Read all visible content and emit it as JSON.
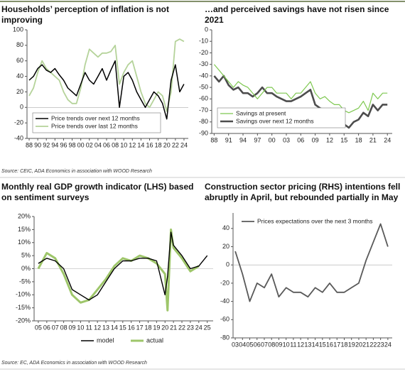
{
  "chart_data": [
    {
      "type": "line",
      "title": "Households’ perception of inflation is not improving",
      "legend": "lower left",
      "x": [
        1988,
        1989,
        1990,
        1991,
        1992,
        1993,
        1994,
        1995,
        1996,
        1997,
        1998,
        1999,
        2000,
        2001,
        2002,
        2003,
        2004,
        2005,
        2006,
        2007,
        2008,
        2009,
        2010,
        2011,
        2012,
        2013,
        2014,
        2015,
        2016,
        2017,
        2018,
        2019,
        2020,
        2021,
        2022,
        2023,
        2024
      ],
      "series": [
        {
          "name": "Price trends over next 12 months",
          "color": "#000000",
          "values": [
            35,
            40,
            50,
            55,
            48,
            45,
            50,
            42,
            35,
            25,
            20,
            15,
            30,
            45,
            35,
            30,
            40,
            50,
            35,
            48,
            60,
            0,
            40,
            45,
            35,
            20,
            10,
            0,
            10,
            20,
            15,
            5,
            -15,
            35,
            55,
            20,
            30
          ]
        },
        {
          "name": "Price trends over last 12 months",
          "color": "#b5d39a",
          "values": [
            15,
            25,
            45,
            60,
            50,
            45,
            40,
            35,
            20,
            10,
            5,
            5,
            25,
            55,
            75,
            70,
            65,
            70,
            70,
            72,
            80,
            30,
            45,
            55,
            60,
            40,
            20,
            5,
            0,
            10,
            20,
            15,
            -5,
            20,
            85,
            88,
            85
          ]
        }
      ],
      "xlim": [
        1987.5,
        2025
      ],
      "ylim": [
        -40,
        100
      ],
      "yticks": [
        -40,
        -20,
        0,
        20,
        40,
        60,
        80,
        100
      ],
      "xticks": [
        {
          "value": 1988,
          "label": "88"
        },
        {
          "value": 1990,
          "label": "90"
        },
        {
          "value": 1992,
          "label": "92"
        },
        {
          "value": 1994,
          "label": "94"
        },
        {
          "value": 1996,
          "label": "96"
        },
        {
          "value": 1998,
          "label": "98"
        },
        {
          "value": 2000,
          "label": "00"
        },
        {
          "value": 2002,
          "label": "02"
        },
        {
          "value": 2004,
          "label": "04"
        },
        {
          "value": 2006,
          "label": "06"
        },
        {
          "value": 2008,
          "label": "08"
        },
        {
          "value": 2010,
          "label": "10"
        },
        {
          "value": 2012,
          "label": "12"
        },
        {
          "value": 2014,
          "label": "14"
        },
        {
          "value": 2016,
          "label": "16"
        },
        {
          "value": 2018,
          "label": "18"
        },
        {
          "value": 2020,
          "label": "20"
        },
        {
          "value": 2022,
          "label": "22"
        },
        {
          "value": 2024,
          "label": "24"
        }
      ]
    },
    {
      "type": "line",
      "title": "…and perceived savings have not risen since 2021",
      "legend": "lower left",
      "x": [
        1988,
        1989,
        1990,
        1991,
        1992,
        1993,
        1994,
        1995,
        1996,
        1997,
        1998,
        1999,
        2000,
        2001,
        2002,
        2003,
        2004,
        2005,
        2006,
        2007,
        2008,
        2009,
        2010,
        2011,
        2012,
        2013,
        2014,
        2015,
        2016,
        2017,
        2018,
        2019,
        2020,
        2021,
        2022,
        2023,
        2024
      ],
      "series": [
        {
          "name": "Savings at present",
          "color": "#7ec850",
          "values": [
            -30,
            -35,
            -40,
            -45,
            -50,
            -45,
            -48,
            -50,
            -55,
            -60,
            -55,
            -50,
            -50,
            -55,
            -55,
            -55,
            -60,
            -55,
            -55,
            -50,
            -45,
            -55,
            -60,
            -58,
            -62,
            -65,
            -65,
            -70,
            -72,
            -70,
            -68,
            -62,
            -70,
            -55,
            -60,
            -55,
            -55
          ]
        },
        {
          "name": "Savings over next 12 months",
          "color": "#4d4d4d",
          "values": [
            -40,
            -45,
            -40,
            -48,
            -52,
            -50,
            -55,
            -55,
            -58,
            -55,
            -50,
            -55,
            -55,
            -58,
            -60,
            -62,
            -62,
            -60,
            -58,
            -55,
            -52,
            -65,
            -68,
            -70,
            -75,
            -72,
            -78,
            -82,
            -85,
            -80,
            -78,
            -72,
            -75,
            -65,
            -70,
            -65,
            -65
          ]
        }
      ],
      "xlim": [
        1987.5,
        2025
      ],
      "ylim": [
        -90,
        0
      ],
      "yticks": [
        -90,
        -80,
        -70,
        -60,
        -50,
        -40,
        -30,
        -20,
        -10,
        0
      ],
      "xticks": [
        {
          "value": 1988,
          "label": "88"
        },
        {
          "value": 1991,
          "label": "91"
        },
        {
          "value": 1994,
          "label": "94"
        },
        {
          "value": 1997,
          "label": "97"
        },
        {
          "value": 2000,
          "label": "00"
        },
        {
          "value": 2003,
          "label": "03"
        },
        {
          "value": 2006,
          "label": "06"
        },
        {
          "value": 2009,
          "label": "09"
        },
        {
          "value": 2012,
          "label": "12"
        },
        {
          "value": 2015,
          "label": "15"
        },
        {
          "value": 2018,
          "label": "18"
        },
        {
          "value": 2021,
          "label": "21"
        },
        {
          "value": 2024,
          "label": "24"
        }
      ]
    },
    {
      "type": "line",
      "title": "Monthly real GDP growth indicator (LHS) based on sentiment surveys",
      "legend": "bottom",
      "x": [
        2005,
        2006,
        2007,
        2008,
        2009,
        2010,
        2011,
        2012,
        2013,
        2014,
        2015,
        2016,
        2017,
        2018,
        2019,
        2020,
        2020.3,
        2020.7,
        2021,
        2022,
        2023,
        2024,
        2025
      ],
      "series": [
        {
          "name": "model",
          "color": "#000000",
          "values": [
            2,
            4,
            3,
            0,
            -8,
            -10,
            -12,
            -10,
            -5,
            0,
            3,
            3,
            4,
            4,
            3,
            -10,
            -3,
            14,
            9,
            5,
            0,
            1,
            5
          ]
        },
        {
          "name": "actual",
          "color": "#9ec66a",
          "values": [
            0,
            6,
            4,
            -2,
            -10,
            -13,
            -12,
            -8,
            -4,
            1,
            4,
            3,
            5,
            4,
            2,
            -2,
            -16,
            15,
            8,
            4,
            -1,
            1,
            null
          ]
        }
      ],
      "xlim": [
        2004.5,
        2025.7
      ],
      "ylim": [
        -20,
        20
      ],
      "yticks": [
        {
          "value": -20,
          "label": "-20%"
        },
        {
          "value": -15,
          "label": "-15%"
        },
        {
          "value": -10,
          "label": "-10%"
        },
        {
          "value": -5,
          "label": "-5%"
        },
        {
          "value": 0,
          "label": "0%"
        },
        {
          "value": 5,
          "label": "5%"
        },
        {
          "value": 10,
          "label": "10%"
        },
        {
          "value": 15,
          "label": "15%"
        },
        {
          "value": 20,
          "label": "20%"
        }
      ],
      "xticks": [
        {
          "value": 2005,
          "label": "05"
        },
        {
          "value": 2006,
          "label": "06"
        },
        {
          "value": 2007,
          "label": "07"
        },
        {
          "value": 2008,
          "label": "08"
        },
        {
          "value": 2009,
          "label": "09"
        },
        {
          "value": 2010,
          "label": "10"
        },
        {
          "value": 2011,
          "label": "11"
        },
        {
          "value": 2012,
          "label": "12"
        },
        {
          "value": 2013,
          "label": "13"
        },
        {
          "value": 2014,
          "label": "14"
        },
        {
          "value": 2015,
          "label": "15"
        },
        {
          "value": 2016,
          "label": "16"
        },
        {
          "value": 2017,
          "label": "17"
        },
        {
          "value": 2018,
          "label": "18"
        },
        {
          "value": 2019,
          "label": "19"
        },
        {
          "value": 2020,
          "label": "20"
        },
        {
          "value": 2021,
          "label": "21"
        },
        {
          "value": 2022,
          "label": "22"
        },
        {
          "value": 2023,
          "label": "23"
        },
        {
          "value": 2024,
          "label": "24"
        },
        {
          "value": 2025,
          "label": "25"
        }
      ]
    },
    {
      "type": "line",
      "title": "Construction sector pricing (RHS) intentions fell abruptly in April, but rebounded partially in May",
      "legend": "upper left",
      "x": [
        2003,
        2004,
        2005,
        2006,
        2007,
        2008,
        2009,
        2010,
        2011,
        2012,
        2013,
        2014,
        2015,
        2016,
        2017,
        2018,
        2019,
        2020,
        2021,
        2022,
        2023,
        2024
      ],
      "series": [
        {
          "name": "Prices expectations over the next 3 months",
          "color": "#595959",
          "values": [
            15,
            -10,
            -40,
            -20,
            -25,
            -10,
            -35,
            -25,
            -30,
            -30,
            -35,
            -25,
            -30,
            -20,
            -30,
            -30,
            -25,
            -20,
            5,
            25,
            45,
            20
          ]
        }
      ],
      "xlim": [
        2002.7,
        2024.6
      ],
      "ylim": [
        -80,
        57
      ],
      "yticks": [
        -80,
        -60,
        -40,
        -20,
        0,
        20,
        40
      ],
      "xticks": [
        {
          "value": 2003,
          "label": "03"
        },
        {
          "value": 2004,
          "label": "04"
        },
        {
          "value": 2005,
          "label": "05"
        },
        {
          "value": 2006,
          "label": "06"
        },
        {
          "value": 2007,
          "label": "07"
        },
        {
          "value": 2008,
          "label": "08"
        },
        {
          "value": 2009,
          "label": "09"
        },
        {
          "value": 2010,
          "label": "10"
        },
        {
          "value": 2011,
          "label": "11"
        },
        {
          "value": 2012,
          "label": "12"
        },
        {
          "value": 2013,
          "label": "13"
        },
        {
          "value": 2014,
          "label": "14"
        },
        {
          "value": 2015,
          "label": "15"
        },
        {
          "value": 2016,
          "label": "16"
        },
        {
          "value": 2017,
          "label": "17"
        },
        {
          "value": 2018,
          "label": "18"
        },
        {
          "value": 2019,
          "label": "19"
        },
        {
          "value": 2020,
          "label": "20"
        },
        {
          "value": 2021,
          "label": "21"
        },
        {
          "value": 2022,
          "label": "22"
        },
        {
          "value": 2023,
          "label": "23"
        },
        {
          "value": 2024,
          "label": "24"
        }
      ]
    }
  ],
  "sources": [
    "Source: CEIC, ADA Economics in association with WOOD Research",
    "Source: EC, ADA Economics in association with WOOD Research"
  ]
}
